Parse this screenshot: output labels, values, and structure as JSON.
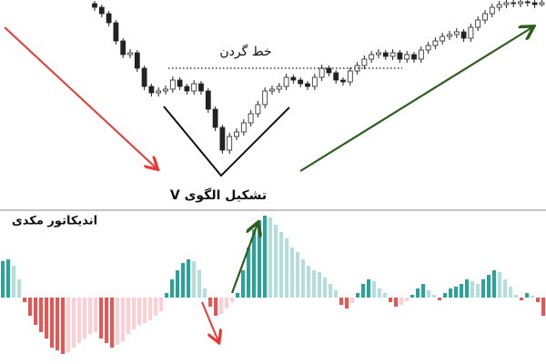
{
  "chart_data": [
    {
      "type": "candlestick",
      "annotations": [
        "خط گردن",
        "تشکیل الگوی V"
      ],
      "ylim": [
        0,
        230
      ],
      "up_color": "#ffffff",
      "down_color": "#222222",
      "wick_color": "#222222",
      "candles": [
        [
          226,
          229,
          218,
          222
        ],
        [
          222,
          225,
          211,
          215
        ],
        [
          215,
          218,
          201,
          205
        ],
        [
          205,
          208,
          181,
          185
        ],
        [
          185,
          188,
          166,
          170
        ],
        [
          170,
          176,
          166,
          172
        ],
        [
          172,
          175,
          151,
          155
        ],
        [
          155,
          158,
          131,
          135
        ],
        [
          135,
          138,
          124,
          128
        ],
        [
          128,
          134,
          124,
          130
        ],
        [
          130,
          136,
          126,
          132
        ],
        [
          132,
          146,
          128,
          142
        ],
        [
          142,
          145,
          131,
          135
        ],
        [
          135,
          138,
          126,
          130
        ],
        [
          130,
          142,
          126,
          138
        ],
        [
          138,
          141,
          126,
          130
        ],
        [
          130,
          133,
          106,
          110
        ],
        [
          110,
          113,
          86,
          90
        ],
        [
          90,
          93,
          61,
          65
        ],
        [
          65,
          84,
          61,
          80
        ],
        [
          80,
          89,
          76,
          85
        ],
        [
          85,
          99,
          81,
          95
        ],
        [
          95,
          109,
          91,
          105
        ],
        [
          105,
          119,
          101,
          115
        ],
        [
          115,
          134,
          111,
          130
        ],
        [
          130,
          136,
          126,
          132
        ],
        [
          132,
          139,
          128,
          135
        ],
        [
          135,
          149,
          131,
          145
        ],
        [
          145,
          148,
          138,
          142
        ],
        [
          142,
          145,
          134,
          138
        ],
        [
          138,
          141,
          131,
          135
        ],
        [
          135,
          149,
          131,
          145
        ],
        [
          145,
          159,
          141,
          155
        ],
        [
          155,
          158,
          146,
          150
        ],
        [
          150,
          153,
          138,
          142
        ],
        [
          142,
          145,
          136,
          140
        ],
        [
          140,
          156,
          136,
          152
        ],
        [
          152,
          162,
          148,
          158
        ],
        [
          158,
          169,
          154,
          165
        ],
        [
          165,
          174,
          161,
          170
        ],
        [
          170,
          176,
          166,
          172
        ],
        [
          172,
          175,
          164,
          168
        ],
        [
          168,
          176,
          164,
          172
        ],
        [
          172,
          175,
          161,
          165
        ],
        [
          165,
          174,
          161,
          170
        ],
        [
          170,
          173,
          161,
          165
        ],
        [
          165,
          179,
          161,
          175
        ],
        [
          175,
          184,
          171,
          180
        ],
        [
          180,
          189,
          176,
          185
        ],
        [
          185,
          194,
          181,
          190
        ],
        [
          190,
          196,
          186,
          192
        ],
        [
          192,
          199,
          188,
          195
        ],
        [
          195,
          198,
          184,
          188
        ],
        [
          188,
          204,
          184,
          200
        ],
        [
          200,
          212,
          196,
          208
        ],
        [
          208,
          219,
          204,
          215
        ],
        [
          215,
          226,
          211,
          222
        ],
        [
          222,
          229,
          218,
          225
        ],
        [
          225,
          230,
          221,
          227
        ],
        [
          227,
          230,
          222,
          226
        ],
        [
          226,
          230,
          222,
          228
        ],
        [
          228,
          230,
          223,
          227
        ],
        [
          227,
          230,
          221,
          225
        ],
        [
          225,
          230,
          223,
          227
        ]
      ]
    },
    {
      "type": "bar",
      "title": "اندیکاتور مکدی",
      "ylim": [
        -73,
        95
      ],
      "colors": {
        "up_strong": "#26a69a",
        "up_weak": "#b2dfdb",
        "down_strong": "#ef5350",
        "down_weak": "#ffcdd2"
      },
      "values": [
        40,
        42,
        35,
        20,
        -5,
        -20,
        -30,
        -38,
        -45,
        -55,
        -58,
        -62,
        -60,
        -55,
        -50,
        -45,
        -40,
        -38,
        -45,
        -50,
        -55,
        -52,
        -48,
        -40,
        -35,
        -30,
        -28,
        -25,
        -20,
        -15,
        5,
        20,
        30,
        38,
        42,
        40,
        30,
        10,
        -10,
        -20,
        -18,
        -12,
        -5,
        5,
        30,
        55,
        75,
        85,
        90,
        88,
        80,
        72,
        65,
        55,
        50,
        42,
        35,
        30,
        28,
        22,
        15,
        8,
        -8,
        -12,
        -6,
        5,
        15,
        20,
        18,
        10,
        5,
        -5,
        -10,
        -8,
        -4,
        3,
        10,
        15,
        8,
        3,
        -3,
        5,
        10,
        12,
        15,
        20,
        18,
        15,
        20,
        25,
        30,
        28,
        20,
        12,
        3,
        -3,
        5,
        2,
        -5,
        -20
      ]
    }
  ]
}
